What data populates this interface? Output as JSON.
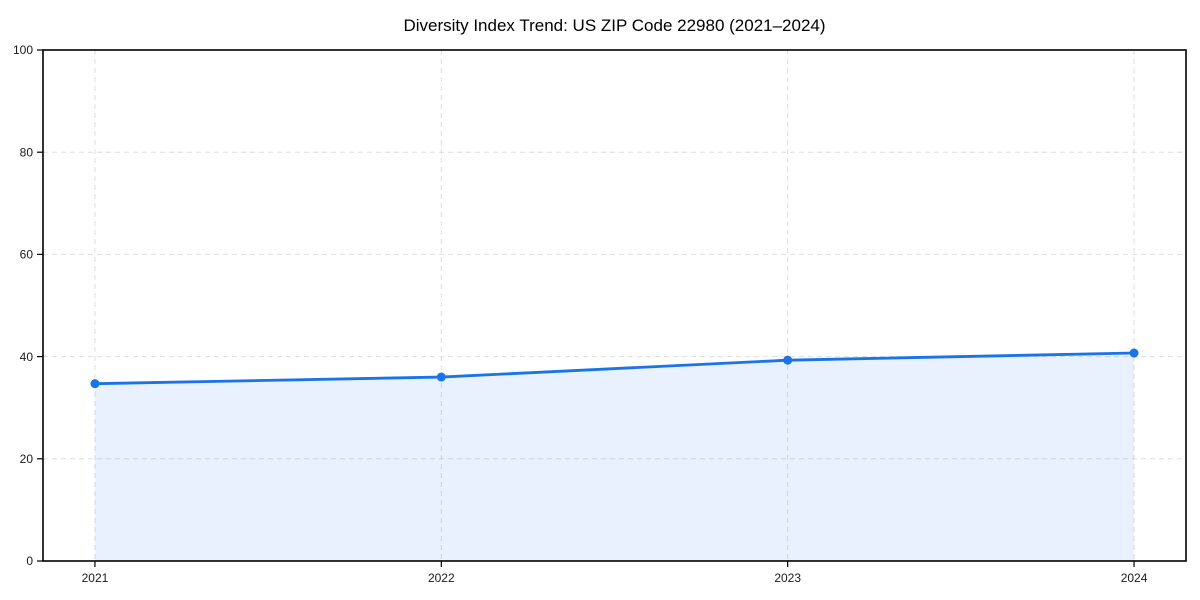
{
  "title": "Diversity Index Trend: US ZIP Code 22980 (2021–2024)",
  "chart_data": {
    "type": "area",
    "title": "Diversity Index Trend: US ZIP Code 22980 (2021–2024)",
    "x": [
      2021,
      2022,
      2023,
      2024
    ],
    "x_tick_labels": [
      "2021",
      "2022",
      "2023",
      "2024"
    ],
    "series": [
      {
        "name": "Diversity Index",
        "values": [
          34.7,
          36.0,
          39.3,
          40.7
        ]
      }
    ],
    "xlabel": "",
    "ylabel": "",
    "xlim": [
      2020.85,
      2024.15
    ],
    "ylim": [
      0,
      100
    ],
    "yticks": [
      0,
      20,
      40,
      60,
      80,
      100
    ],
    "grid": "dashed, both axes",
    "legend": "none",
    "colors": {
      "line": "#1a73e8",
      "marker": "#1a73e8",
      "fill": "rgba(26,115,232,0.10)",
      "grid": "#dedede",
      "axis": "#000000",
      "tick_label": "#1a1a1a",
      "title": "#000000",
      "background": "#ffffff"
    },
    "marker_radius": 4.5,
    "line_width": 2.8
  }
}
